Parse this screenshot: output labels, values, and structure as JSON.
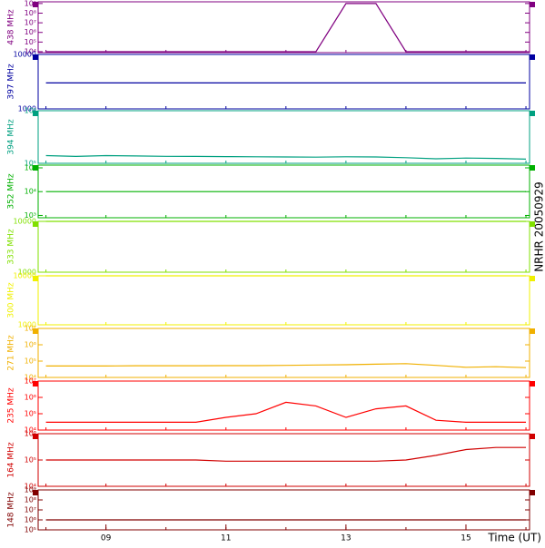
{
  "chart_data": [
    {
      "type": "line",
      "ylabel": "438 MHz",
      "log": true,
      "ylim": [
        8000,
        1500000000
      ],
      "yticks": [
        {
          "value": 10000,
          "label": "10⁴"
        },
        {
          "value": 100000,
          "label": "10⁵"
        },
        {
          "value": 1000000,
          "label": "10⁶"
        },
        {
          "value": 10000000,
          "label": "10⁷"
        },
        {
          "value": 100000000,
          "label": "10⁸"
        },
        {
          "value": 1000000000,
          "label": "10⁹"
        }
      ],
      "x": [
        8,
        8.5,
        9,
        9.5,
        10,
        10.5,
        11,
        11.5,
        12,
        12.5,
        13,
        13.5,
        14,
        14.5,
        15,
        15.5,
        16
      ],
      "series": [
        {
          "color": "#800080",
          "values": [
            10000,
            10000,
            10000,
            10000,
            10000,
            10000,
            10000,
            10000,
            10000,
            10000,
            1000000000,
            1000000000,
            10000,
            10000,
            10000,
            10000,
            10000
          ]
        }
      ]
    },
    {
      "type": "line",
      "ylabel": "397 MHz",
      "log": true,
      "ylim": [
        1000,
        10000
      ],
      "yticks": [
        1000,
        10000
      ],
      "x": [
        8,
        8.5,
        9,
        9.5,
        10,
        10.5,
        11,
        11.5,
        12,
        12.5,
        13,
        13.5,
        14,
        14.5,
        15,
        15.5,
        16
      ],
      "series": [
        {
          "color": "#0000a0",
          "values": [
            3000,
            3000,
            3000,
            3000,
            3000,
            3000,
            3000,
            3000,
            3000,
            3000,
            3000,
            3000,
            3000,
            3000,
            3000,
            3000,
            3000
          ]
        }
      ]
    },
    {
      "type": "line",
      "ylabel": "394 MHz",
      "log": true,
      "ylim": [
        100000,
        1000000
      ],
      "yticks": [
        {
          "value": 100000,
          "label": "10⁵"
        },
        {
          "value": 1000000,
          "label": "10⁶"
        }
      ],
      "x": [
        8,
        8.5,
        9,
        9.5,
        10,
        10.5,
        11,
        11.5,
        12,
        12.5,
        13,
        13.5,
        14,
        14.5,
        15,
        15.5,
        16
      ],
      "series": [
        {
          "color": "#00a080",
          "values": [
            140000,
            135000,
            140000,
            138000,
            136000,
            135000,
            134000,
            133000,
            132000,
            131000,
            133000,
            132000,
            128000,
            122000,
            126000,
            124000,
            120000
          ]
        }
      ]
    },
    {
      "type": "line",
      "ylabel": "352 MHz",
      "log": true,
      "ylim": [
        800,
        130000
      ],
      "yticks": [
        {
          "value": 1000,
          "label": "10³"
        },
        {
          "value": 10000,
          "label": "10⁴"
        },
        {
          "value": 100000,
          "label": "10⁵"
        }
      ],
      "x": [
        8,
        8.5,
        9,
        9.5,
        10,
        10.5,
        11,
        11.5,
        12,
        12.5,
        13,
        13.5,
        14,
        14.5,
        15,
        15.5,
        16
      ],
      "series": [
        {
          "color": "#00b000",
          "values": [
            10000,
            10000,
            10000,
            10000,
            10000,
            10000,
            10000,
            10000,
            10000,
            10000,
            10000,
            10000,
            10000,
            10000,
            10000,
            10000,
            10000
          ]
        }
      ]
    },
    {
      "type": "line",
      "ylabel": "333 MHz",
      "log": true,
      "ylim": [
        1000,
        10000
      ],
      "yticks": [
        1000,
        10000
      ],
      "x": [
        8,
        8.5,
        9,
        9.5,
        10,
        10.5,
        11,
        11.5,
        12,
        12.5,
        13,
        13.5,
        14,
        14.5,
        15,
        15.5,
        16
      ],
      "series": [
        {
          "color": "#80e000",
          "values": [
            10000,
            10000,
            10000,
            10000,
            10000,
            10000,
            10000,
            10000,
            10000,
            10000,
            10000,
            10000,
            10000,
            10000,
            10000,
            10000,
            10000
          ]
        }
      ]
    },
    {
      "type": "line",
      "ylabel": "300 MHz",
      "log": true,
      "ylim": [
        1000,
        10000
      ],
      "yticks": [
        1000,
        10000
      ],
      "x": [
        8,
        8.5,
        9,
        9.5,
        10,
        10.5,
        11,
        11.5,
        12,
        12.5,
        13,
        13.5,
        14,
        14.5,
        15,
        15.5,
        16
      ],
      "series": [
        {
          "color": "#f0f000",
          "values": [
            10000,
            10000,
            10000,
            10000,
            10000,
            10000,
            10000,
            10000,
            10000,
            10000,
            10000,
            10000,
            10000,
            10000,
            10000,
            10000,
            10000
          ]
        }
      ]
    },
    {
      "type": "line",
      "ylabel": "271 MHz",
      "log": true,
      "ylim": [
        10000,
        10000000
      ],
      "yticks": [
        {
          "value": 10000,
          "label": "10⁴"
        },
        {
          "value": 100000,
          "label": "10⁵"
        },
        {
          "value": 1000000,
          "label": "10⁶"
        },
        {
          "value": 10000000,
          "label": "10⁷"
        }
      ],
      "x": [
        8,
        8.5,
        9,
        9.5,
        10,
        10.5,
        11,
        11.5,
        12,
        12.5,
        13,
        13.5,
        14,
        14.5,
        15,
        15.5,
        16
      ],
      "series": [
        {
          "color": "#f0b000",
          "values": [
            50000,
            50000,
            50000,
            52000,
            52000,
            52000,
            53000,
            53000,
            55000,
            58000,
            60000,
            65000,
            70000,
            55000,
            42000,
            45000,
            40000
          ]
        }
      ]
    },
    {
      "type": "line",
      "ylabel": "235 MHz",
      "log": true,
      "ylim": [
        10000,
        10000000
      ],
      "yticks": [
        {
          "value": 10000,
          "label": "10⁴"
        },
        {
          "value": 100000,
          "label": "10⁵"
        },
        {
          "value": 1000000,
          "label": "10⁶"
        },
        {
          "value": 10000000,
          "label": "10⁷"
        }
      ],
      "x": [
        8,
        8.5,
        9,
        9.5,
        10,
        10.5,
        11,
        11.5,
        12,
        12.5,
        13,
        13.5,
        14,
        14.5,
        15,
        15.5,
        16
      ],
      "series": [
        {
          "color": "#ff0000",
          "values": [
            30000,
            30000,
            30000,
            30000,
            30000,
            30000,
            60000,
            100000,
            500000,
            300000,
            60000,
            200000,
            300000,
            40000,
            30000,
            30000,
            30000
          ]
        }
      ]
    },
    {
      "type": "line",
      "ylabel": "164 MHz",
      "log": true,
      "ylim": [
        10000,
        1000000
      ],
      "yticks": [
        {
          "value": 10000,
          "label": "10⁴"
        },
        {
          "value": 100000,
          "label": "10⁵"
        },
        {
          "value": 1000000,
          "label": "10⁶"
        }
      ],
      "x": [
        8,
        8.5,
        9,
        9.5,
        10,
        10.5,
        11,
        11.5,
        12,
        12.5,
        13,
        13.5,
        14,
        14.5,
        15,
        15.5,
        16
      ],
      "series": [
        {
          "color": "#d00000",
          "values": [
            100000,
            100000,
            100000,
            100000,
            100000,
            100000,
            90000,
            90000,
            90000,
            90000,
            90000,
            90000,
            100000,
            150000,
            250000,
            300000,
            300000
          ]
        }
      ]
    },
    {
      "type": "line",
      "ylabel": "148 MHz",
      "log": true,
      "ylim": [
        100000,
        1000000000
      ],
      "yticks": [
        {
          "value": 100000,
          "label": "10⁵"
        },
        {
          "value": 1000000,
          "label": "10⁶"
        },
        {
          "value": 10000000,
          "label": "10⁷"
        },
        {
          "value": 100000000,
          "label": "10⁸"
        },
        {
          "value": 1000000000,
          "label": "10⁹"
        }
      ],
      "x": [
        8,
        8.5,
        9,
        9.5,
        10,
        10.5,
        11,
        11.5,
        12,
        12.5,
        13,
        13.5,
        14,
        14.5,
        15,
        15.5,
        16
      ],
      "xlim": [
        7.87,
        16.06
      ],
      "xlabel": "Time (UT)",
      "xticks": [
        {
          "value": 9,
          "label": "09"
        },
        {
          "value": 11,
          "label": "11"
        },
        {
          "value": 13,
          "label": "13"
        },
        {
          "value": 15,
          "label": "15"
        }
      ],
      "series": [
        {
          "color": "#800000",
          "values": [
            1000000,
            1000000,
            1000000,
            1000000,
            1000000,
            1000000,
            1000000,
            1000000,
            1000000,
            1000000,
            1000000,
            1000000,
            1000000,
            1000000,
            1000000,
            1000000,
            1000000
          ]
        }
      ]
    }
  ],
  "side_label": "NRHR 20050929"
}
